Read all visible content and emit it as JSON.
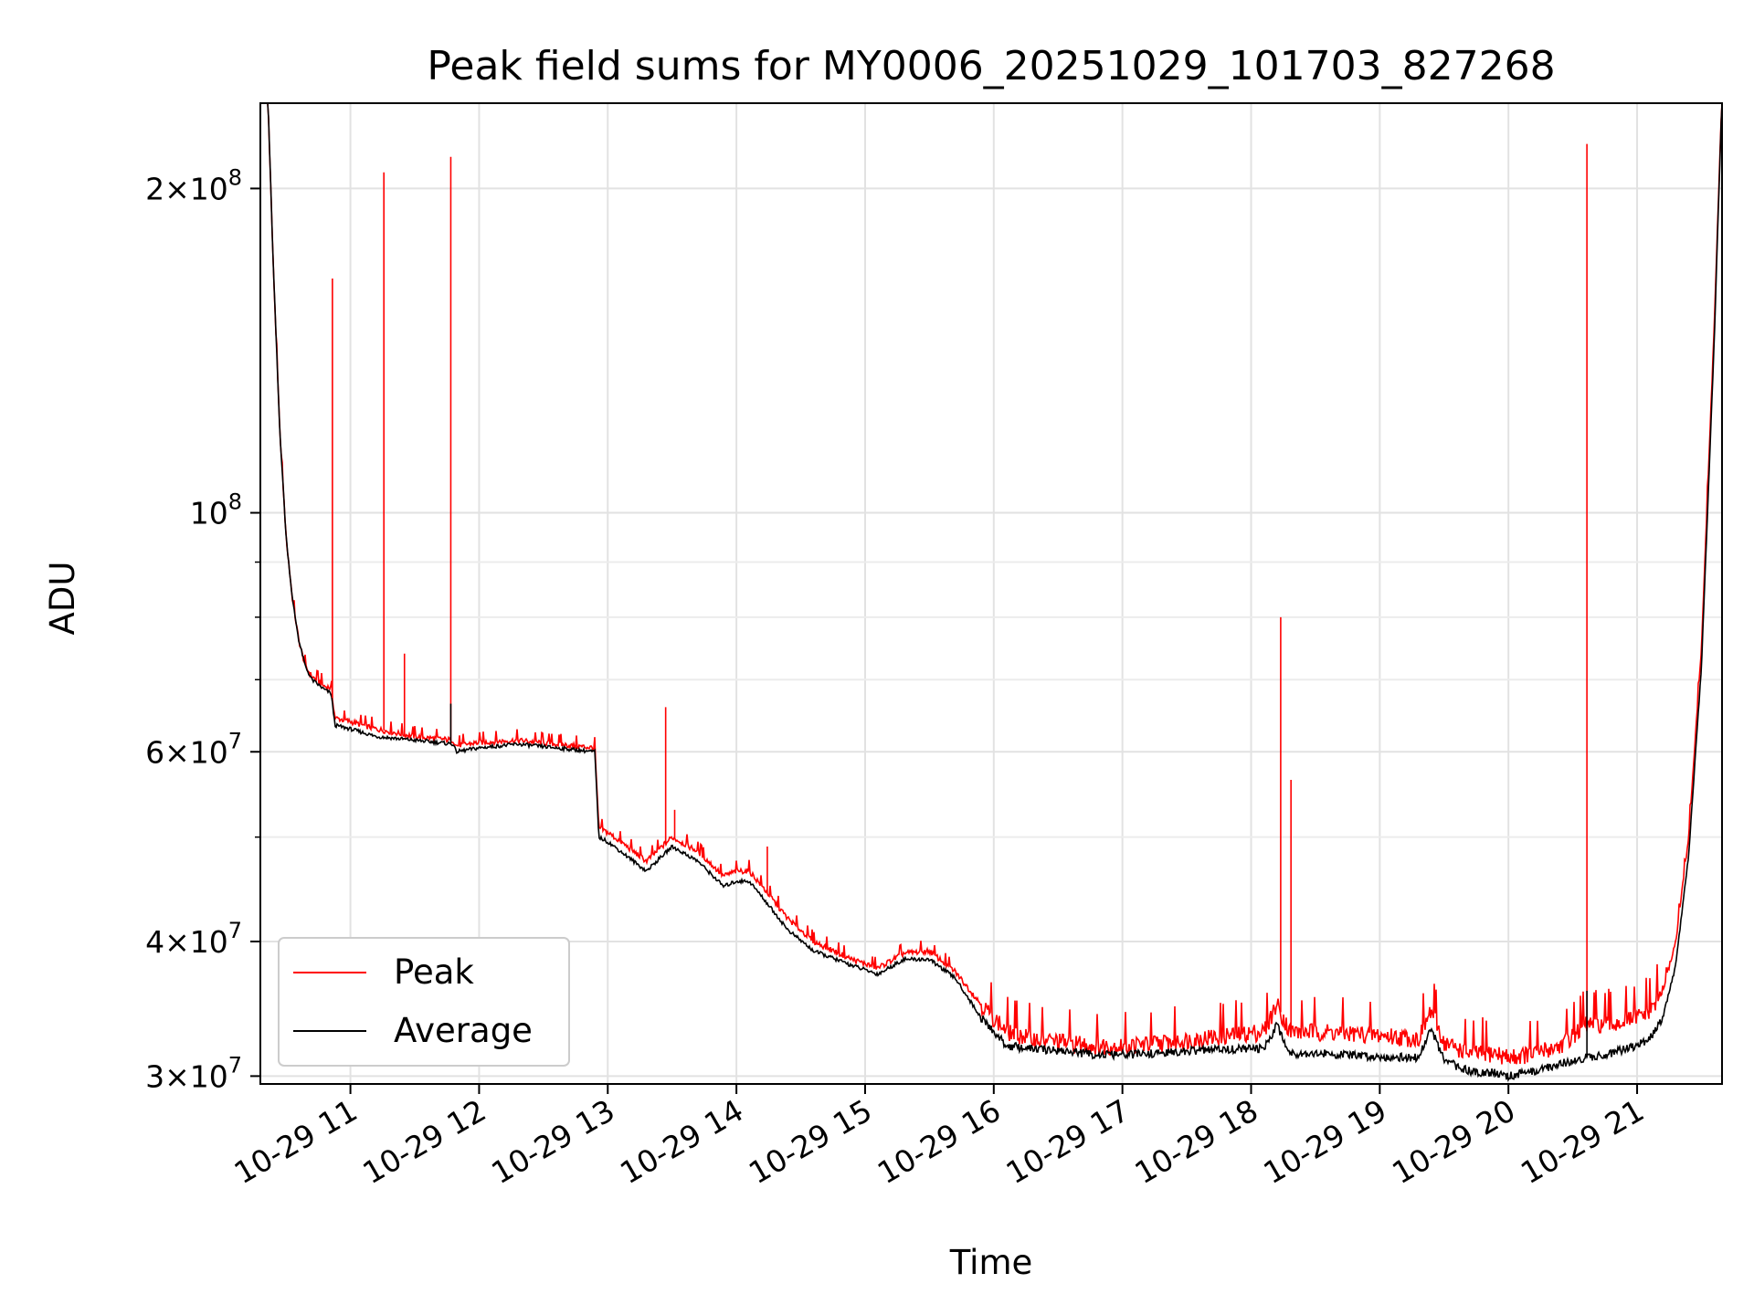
{
  "chart_data": {
    "type": "line",
    "title": "Peak field sums for MY0006_20251029_101703_827268",
    "xlabel": "Time",
    "ylabel": "ADU",
    "yscale": "log",
    "ylim": [
      29500000,
      240000000
    ],
    "xlim": [
      10.3,
      21.66
    ],
    "grid": true,
    "x_ticks": [
      {
        "value": 11,
        "label": "10-29 11"
      },
      {
        "value": 12,
        "label": "10-29 12"
      },
      {
        "value": 13,
        "label": "10-29 13"
      },
      {
        "value": 14,
        "label": "10-29 14"
      },
      {
        "value": 15,
        "label": "10-29 15"
      },
      {
        "value": 16,
        "label": "10-29 16"
      },
      {
        "value": 17,
        "label": "10-29 17"
      },
      {
        "value": 18,
        "label": "10-29 18"
      },
      {
        "value": 19,
        "label": "10-29 19"
      },
      {
        "value": 20,
        "label": "10-29 20"
      },
      {
        "value": 21,
        "label": "10-29 21"
      }
    ],
    "y_ticks": [
      {
        "value": 30000000,
        "mantissa": "3",
        "exp": "7"
      },
      {
        "value": 40000000,
        "mantissa": "4",
        "exp": "7"
      },
      {
        "value": 60000000,
        "mantissa": "6",
        "exp": "7"
      },
      {
        "value": 100000000,
        "mantissa": "",
        "exp": "8"
      },
      {
        "value": 200000000,
        "mantissa": "2",
        "exp": "8"
      }
    ],
    "y_minor_ticks": [
      50000000,
      70000000,
      80000000,
      90000000
    ],
    "legend": {
      "position": "lower-left",
      "entries": [
        {
          "label": "Peak",
          "color": "#ff0000"
        },
        {
          "label": "Average",
          "color": "#000000"
        }
      ]
    },
    "series": [
      {
        "name": "Peak",
        "color": "#ff0000",
        "x": [
          10.3,
          10.36,
          10.4,
          10.45,
          10.5,
          10.55,
          10.6,
          10.65,
          10.7,
          10.8,
          10.85,
          10.88,
          11.0,
          11.2,
          11.5,
          11.8,
          11.82,
          12.0,
          12.3,
          12.6,
          12.9,
          12.93,
          13.0,
          13.1,
          13.3,
          13.5,
          13.7,
          13.9,
          14.0,
          14.1,
          14.2,
          14.4,
          14.6,
          14.9,
          15.1,
          15.3,
          15.5,
          15.7,
          15.9,
          16.1,
          16.3,
          16.5,
          16.8,
          17.0,
          17.3,
          17.6,
          17.9,
          18.1,
          18.2,
          18.3,
          18.5,
          18.9,
          19.3,
          19.4,
          19.5,
          19.7,
          19.9,
          20.0,
          20.2,
          20.4,
          20.6,
          20.8,
          21.0,
          21.1,
          21.2,
          21.3,
          21.4,
          21.5,
          21.6,
          21.66
        ],
        "y": [
          250000000,
          240000000,
          170000000,
          120000000,
          95000000,
          83000000,
          76000000,
          72000000,
          70500000,
          69000000,
          68800000,
          64500000,
          64000000,
          63000000,
          62000000,
          61500000,
          60800000,
          61200000,
          61500000,
          61000000,
          60500000,
          51000000,
          50500000,
          49500000,
          47500000,
          50000000,
          48500000,
          46000000,
          46500000,
          46500000,
          45000000,
          42000000,
          40000000,
          38500000,
          37800000,
          39000000,
          39200000,
          37500000,
          35000000,
          33000000,
          32500000,
          32300000,
          32000000,
          32000000,
          32200000,
          32500000,
          32800000,
          33000000,
          35000000,
          33000000,
          33000000,
          32800000,
          32500000,
          34500000,
          32200000,
          31500000,
          31500000,
          31200000,
          31500000,
          32000000,
          33500000,
          33500000,
          34000000,
          34500000,
          36000000,
          40000000,
          50000000,
          75000000,
          150000000,
          245000000
        ]
      },
      {
        "name": "Average",
        "color": "#000000",
        "x": [
          10.3,
          10.36,
          10.4,
          10.45,
          10.5,
          10.55,
          10.6,
          10.65,
          10.7,
          10.8,
          10.85,
          10.88,
          11.0,
          11.2,
          11.5,
          11.8,
          11.82,
          12.0,
          12.3,
          12.6,
          12.9,
          12.93,
          13.0,
          13.1,
          13.3,
          13.5,
          13.7,
          13.9,
          14.0,
          14.1,
          14.2,
          14.4,
          14.6,
          14.9,
          15.1,
          15.3,
          15.5,
          15.7,
          15.9,
          16.1,
          16.3,
          16.5,
          16.8,
          17.0,
          17.3,
          17.6,
          17.9,
          18.1,
          18.2,
          18.3,
          18.5,
          18.9,
          19.3,
          19.4,
          19.5,
          19.7,
          19.9,
          20.0,
          20.2,
          20.4,
          20.6,
          20.8,
          21.0,
          21.1,
          21.2,
          21.3,
          21.4,
          21.5,
          21.6,
          21.66
        ],
        "y": [
          250000000,
          240000000,
          170000000,
          120000000,
          95000000,
          83000000,
          76000000,
          72000000,
          70000000,
          68500000,
          68000000,
          63500000,
          63000000,
          62000000,
          61500000,
          61000000,
          60000000,
          60500000,
          61000000,
          60500000,
          60000000,
          50000000,
          49500000,
          48500000,
          46500000,
          49000000,
          47500000,
          45000000,
          45500000,
          45500000,
          44000000,
          41000000,
          39200000,
          38000000,
          37300000,
          38500000,
          38500000,
          37000000,
          34000000,
          32000000,
          31800000,
          31700000,
          31400000,
          31400000,
          31500000,
          31700000,
          31800000,
          31800000,
          33500000,
          31500000,
          31500000,
          31300000,
          31200000,
          33200000,
          31000000,
          30300000,
          30200000,
          30000000,
          30300000,
          30800000,
          31200000,
          31500000,
          32000000,
          32500000,
          34000000,
          38000000,
          48000000,
          72000000,
          145000000,
          245000000
        ]
      }
    ],
    "spikes": [
      {
        "series": "Peak",
        "x": 10.86,
        "y": 165000000
      },
      {
        "series": "Peak",
        "x": 11.26,
        "y": 207000000
      },
      {
        "series": "Peak",
        "x": 11.42,
        "y": 74000000
      },
      {
        "series": "Peak",
        "x": 11.78,
        "y": 214000000
      },
      {
        "series": "Peak",
        "x": 13.45,
        "y": 66000000
      },
      {
        "series": "Peak",
        "x": 13.52,
        "y": 53000000
      },
      {
        "series": "Peak",
        "x": 14.24,
        "y": 49000000
      },
      {
        "series": "Peak",
        "x": 18.23,
        "y": 80000000
      },
      {
        "series": "Peak",
        "x": 18.31,
        "y": 56500000
      },
      {
        "series": "Peak",
        "x": 20.61,
        "y": 220000000
      },
      {
        "series": "Average",
        "x": 11.78,
        "y": 66500000
      },
      {
        "series": "Average",
        "x": 20.61,
        "y": 36000000
      }
    ]
  }
}
